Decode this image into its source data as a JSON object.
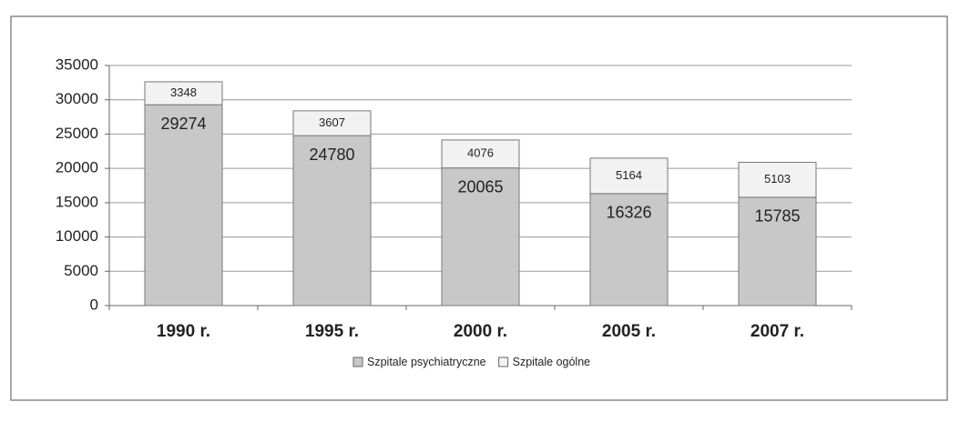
{
  "chart_data": {
    "type": "stacked_bar",
    "categories": [
      "1990 r.",
      "1995 r.",
      "2000 r.",
      "2005 r.",
      "2007 r."
    ],
    "series": [
      {
        "name": "Szpitale psychiatryczne",
        "color": "#c8c8c8",
        "values": [
          29274,
          24780,
          20065,
          16326,
          15785
        ]
      },
      {
        "name": "Szpitale ogólne",
        "color": "#f2f2f2",
        "values": [
          3348,
          3607,
          4076,
          5164,
          5103
        ]
      }
    ],
    "ylim": [
      0,
      35000
    ],
    "yticks": [
      0,
      5000,
      10000,
      15000,
      20000,
      25000,
      30000,
      35000
    ],
    "grid": true,
    "legend": "bottom"
  }
}
